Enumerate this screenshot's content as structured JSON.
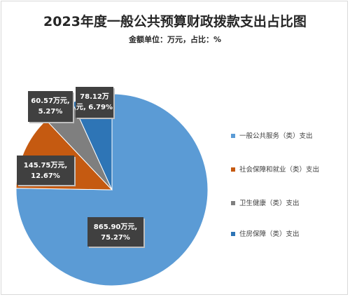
{
  "chart_data": {
    "type": "pie",
    "title": "2023年度一般公共预算财政拨款支出占比图",
    "subtitle": "金额单位：万元，占比：%",
    "categories": [
      "一般公共服务（类）支出",
      "社会保障和就业（类）支出",
      "卫生健康（类）支出",
      "住房保障（类）支出"
    ],
    "values": [
      865.9,
      145.75,
      60.57,
      78.12
    ],
    "percents": [
      75.27,
      12.67,
      5.27,
      6.79
    ],
    "data_labels": [
      [
        "865.90万元,",
        "75.27%"
      ],
      [
        "145.75万元,",
        "12.67%"
      ],
      [
        "60.57万元,",
        "5.27%"
      ],
      [
        "78.12万",
        "元, 6.79%"
      ]
    ],
    "colors": [
      "#5b9bd5",
      "#c55a11",
      "#7f7f7f",
      "#2e75b6"
    ],
    "legend_position": "right"
  }
}
